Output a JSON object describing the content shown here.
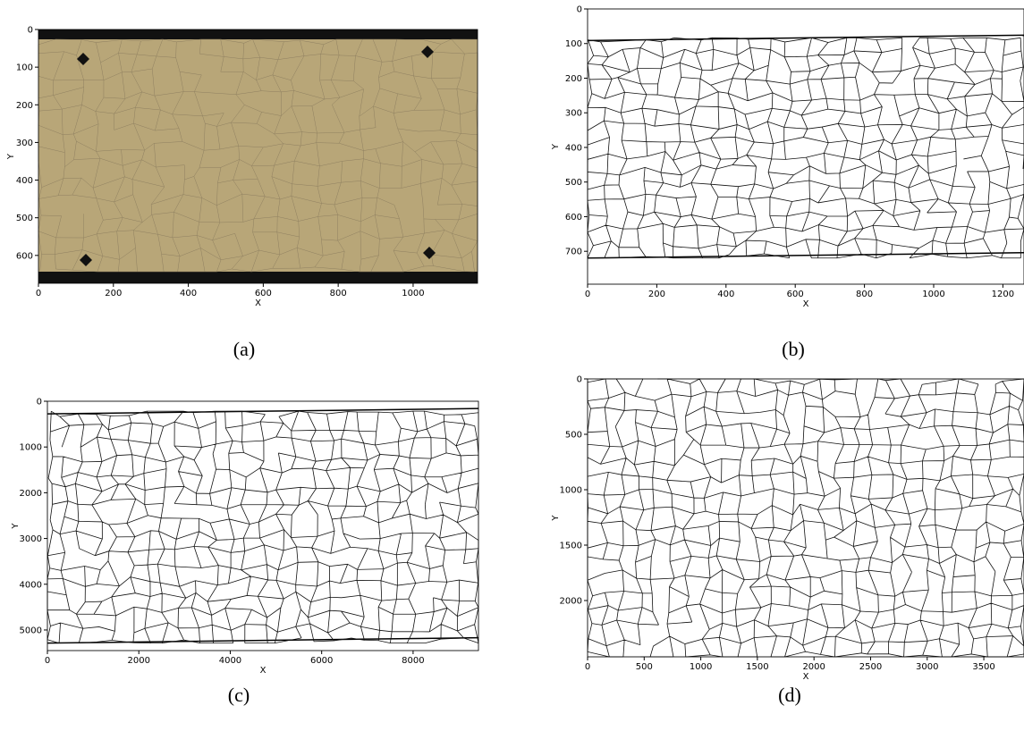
{
  "panels": [
    {
      "caption": "(a)",
      "xlabel": "X",
      "ylabel": "Y",
      "xlim": [
        0,
        1172
      ],
      "ylim": [
        674,
        0
      ],
      "xticks": [
        0,
        200,
        400,
        600,
        800,
        1000
      ],
      "yticks": [
        0,
        100,
        200,
        300,
        400,
        500,
        600
      ]
    },
    {
      "caption": "(b)",
      "xlabel": "X",
      "ylabel": "Y",
      "xlim": [
        0,
        1261
      ],
      "ylim": [
        795,
        0
      ],
      "xticks": [
        0,
        200,
        400,
        600,
        800,
        1000,
        1200
      ],
      "yticks": [
        0,
        100,
        200,
        300,
        400,
        500,
        600,
        700
      ]
    },
    {
      "caption": "(c)",
      "xlabel": "X",
      "ylabel": "Y",
      "xlim": [
        0,
        9430
      ],
      "ylim": [
        5450,
        0
      ],
      "xticks": [
        0,
        2000,
        4000,
        6000,
        8000
      ],
      "yticks": [
        0,
        1000,
        2000,
        3000,
        4000,
        5000
      ]
    },
    {
      "caption": "(d)",
      "xlabel": "X",
      "ylabel": "Y",
      "xlim": [
        0,
        3855
      ],
      "ylim": [
        2508,
        0
      ],
      "xticks": [
        0,
        500,
        1000,
        1500,
        2000,
        2500,
        3000,
        3500
      ],
      "yticks": [
        0,
        500,
        1000,
        1500,
        2000
      ]
    }
  ]
}
